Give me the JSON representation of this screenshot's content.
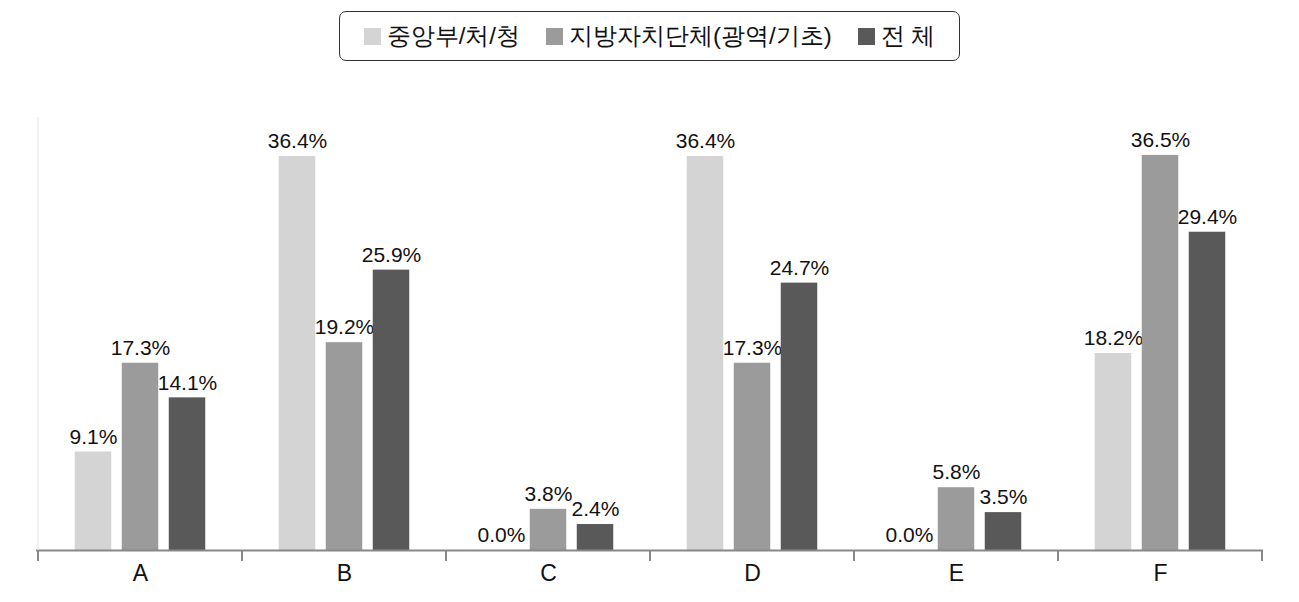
{
  "chart_data": {
    "type": "bar",
    "categories": [
      "A",
      "B",
      "C",
      "D",
      "E",
      "F"
    ],
    "series": [
      {
        "name": "중앙부/처/청",
        "color": "#d4d4d4",
        "values": [
          9.1,
          36.4,
          0.0,
          36.4,
          0.0,
          18.2
        ],
        "value_labels": [
          "9.1%",
          "36.4%",
          "0.0%",
          "36.4%",
          "0.0%",
          "18.2%"
        ]
      },
      {
        "name": "지방자치단체(광역/기초)",
        "color": "#9b9b9b",
        "values": [
          17.3,
          19.2,
          3.8,
          17.3,
          5.8,
          36.5
        ],
        "value_labels": [
          "17.3%",
          "19.2%",
          "3.8%",
          "17.3%",
          "5.8%",
          "36.5%"
        ]
      },
      {
        "name": "전 체",
        "color": "#595959",
        "values": [
          14.1,
          25.9,
          2.4,
          24.7,
          3.5,
          29.4
        ],
        "value_labels": [
          "14.1%",
          "25.9%",
          "2.4%",
          "24.7%",
          "3.5%",
          "29.4%"
        ]
      }
    ],
    "ylim": [
      0,
      40
    ],
    "legend": "top",
    "data_labels": true,
    "tick_labels": "x"
  }
}
